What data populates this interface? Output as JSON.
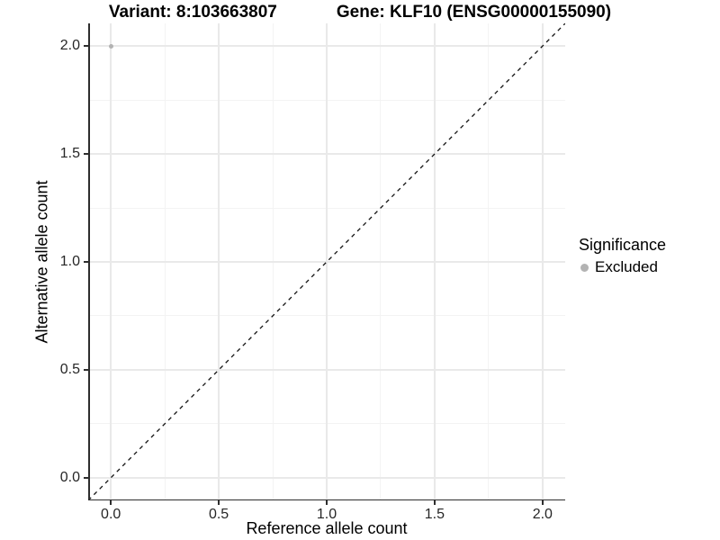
{
  "titles": {
    "variant": "Variant: 8:103663807",
    "gene": "Gene: KLF10 (ENSG00000155090)"
  },
  "chart_data": {
    "type": "scatter",
    "title": "Variant: 8:103663807   Gene: KLF10 (ENSG00000155090)",
    "xlabel": "Reference allele count",
    "ylabel": "Alternative allele count",
    "xlim": [
      -0.105,
      2.105
    ],
    "ylim": [
      -0.105,
      2.105
    ],
    "x_ticks": {
      "values": [
        0,
        0.5,
        1,
        1.5,
        2
      ],
      "labels": [
        "0.0",
        "0.5",
        "1.0",
        "1.5",
        "2.0"
      ]
    },
    "y_ticks": {
      "values": [
        0,
        0.5,
        1,
        1.5,
        2
      ],
      "labels": [
        "0.0",
        "0.5",
        "1.0",
        "1.5",
        "2.0"
      ]
    },
    "x_minor": [
      0.25,
      0.75,
      1.25,
      1.75
    ],
    "y_minor": [
      0.25,
      0.75,
      1.25,
      1.75
    ],
    "grid": "major+minor",
    "background": "#ffffff",
    "points": [
      {
        "x": 0.0,
        "y": 2.0,
        "series": "Excluded",
        "color": "#b3b3b3",
        "size": 5
      }
    ],
    "reference_line": {
      "type": "identity",
      "slope": 1,
      "intercept": 0,
      "style": "dashed",
      "color": "#111111"
    },
    "legend": {
      "title": "Significance",
      "position": "right",
      "entries": [
        {
          "label": "Excluded",
          "color": "#b3b3b3"
        }
      ]
    }
  },
  "colors": {
    "axis_line": "#2e2e2e",
    "tick_label": "#262626",
    "grid_major": "#e9e9e9",
    "grid_minor": "#f3f3f3"
  }
}
